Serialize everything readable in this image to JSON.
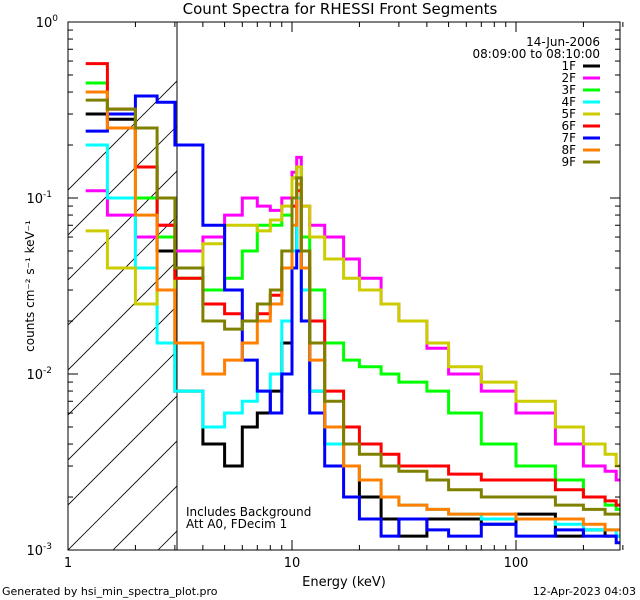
{
  "chart_data": {
    "type": "line",
    "title": "Count Spectra for RHESSI Front Segments",
    "xlabel": "Energy (keV)",
    "ylabel": "counts cm⁻² s⁻¹ keV⁻¹",
    "xscale": "log",
    "yscale": "log",
    "xlim": [
      1,
      300
    ],
    "ylim": [
      0.001,
      1
    ],
    "x_tick_labels": [
      "1",
      "10",
      "100"
    ],
    "y_tick_labels": [
      {
        "base": "10",
        "exp": "0"
      },
      {
        "base": "10",
        "exp": "-1"
      },
      {
        "base": "10",
        "exp": "-2"
      },
      {
        "base": "10",
        "exp": "-3"
      }
    ],
    "date": "14-Jun-2006",
    "time_range": "08:09:00 to 08:10:00",
    "annotations": [
      "Includes Background",
      "Att A0, FDecim 1"
    ],
    "footer_left": "Generated by hsi_min_spectra_plot.pro",
    "footer_right": "12-Apr-2023 04:03",
    "shaded_region": [
      1,
      3
    ],
    "legend_position": "top-right",
    "series": [
      {
        "name": "1F",
        "color": "#000000",
        "x": [
          1.2,
          1.5,
          2.0,
          2.5,
          3.0,
          4.0,
          5.0,
          6.0,
          7.0,
          8.0,
          9.0,
          10.0,
          10.5,
          11.0,
          12.0,
          14.0,
          17.0,
          20.0,
          25.0,
          30.0,
          40.0,
          50.0,
          70.0,
          100.0,
          150.0,
          200.0,
          250.0,
          280.0
        ],
        "y": [
          0.3,
          0.28,
          0.15,
          0.05,
          0.008,
          0.004,
          0.003,
          0.005,
          0.006,
          0.008,
          0.015,
          0.05,
          0.1,
          0.04,
          0.008,
          0.004,
          0.003,
          0.002,
          0.0015,
          0.0012,
          0.0015,
          0.0015,
          0.0014,
          0.0016,
          0.0012,
          0.0013,
          0.0012,
          0.0012
        ]
      },
      {
        "name": "2F",
        "color": "#ff00ff",
        "x": [
          1.2,
          1.5,
          2.0,
          2.5,
          3.0,
          4.0,
          5.0,
          6.0,
          7.0,
          8.0,
          9.0,
          10.0,
          10.5,
          11.0,
          12.0,
          14.0,
          17.0,
          20.0,
          25.0,
          30.0,
          40.0,
          50.0,
          70.0,
          100.0,
          150.0,
          200.0,
          250.0,
          280.0
        ],
        "y": [
          0.11,
          0.08,
          0.06,
          0.07,
          0.05,
          0.06,
          0.08,
          0.1,
          0.09,
          0.085,
          0.1,
          0.14,
          0.17,
          0.09,
          0.07,
          0.06,
          0.045,
          0.035,
          0.025,
          0.02,
          0.014,
          0.01,
          0.008,
          0.006,
          0.004,
          0.003,
          0.0028,
          0.0025
        ]
      },
      {
        "name": "3F",
        "color": "#00ff00",
        "x": [
          1.2,
          1.5,
          2.0,
          2.5,
          3.0,
          4.0,
          5.0,
          6.0,
          7.0,
          8.0,
          9.0,
          10.0,
          10.5,
          11.0,
          12.0,
          14.0,
          17.0,
          20.0,
          25.0,
          30.0,
          40.0,
          50.0,
          70.0,
          100.0,
          150.0,
          200.0,
          250.0,
          280.0
        ],
        "y": [
          0.45,
          0.3,
          0.1,
          0.06,
          0.035,
          0.03,
          0.035,
          0.05,
          0.07,
          0.07,
          0.08,
          0.13,
          0.15,
          0.06,
          0.03,
          0.015,
          0.012,
          0.011,
          0.01,
          0.009,
          0.008,
          0.006,
          0.004,
          0.003,
          0.0025,
          0.002,
          0.0018,
          0.0017
        ]
      },
      {
        "name": "4F",
        "color": "#00ffff",
        "x": [
          1.2,
          1.5,
          2.0,
          2.5,
          3.0,
          4.0,
          5.0,
          6.0,
          7.0,
          8.0,
          9.0,
          10.0,
          10.5,
          11.0,
          12.0,
          14.0,
          17.0,
          20.0,
          25.0,
          30.0,
          40.0,
          50.0,
          70.0,
          100.0,
          150.0,
          200.0,
          250.0,
          280.0
        ],
        "y": [
          0.2,
          0.1,
          0.04,
          0.015,
          0.008,
          0.005,
          0.006,
          0.007,
          0.008,
          0.01,
          0.02,
          0.05,
          0.1,
          0.03,
          0.008,
          0.004,
          0.003,
          0.0025,
          0.002,
          0.0018,
          0.0017,
          0.0016,
          0.0015,
          0.0015,
          0.0014,
          0.0013,
          0.0013,
          0.0012
        ]
      },
      {
        "name": "5F",
        "color": "#cccc00",
        "x": [
          1.2,
          1.5,
          2.0,
          2.5,
          3.0,
          4.0,
          5.0,
          6.0,
          7.0,
          8.0,
          9.0,
          10.0,
          10.5,
          11.0,
          12.0,
          14.0,
          17.0,
          20.0,
          25.0,
          30.0,
          40.0,
          50.0,
          70.0,
          100.0,
          150.0,
          200.0,
          250.0,
          280.0
        ],
        "y": [
          0.065,
          0.04,
          0.025,
          0.03,
          0.04,
          0.055,
          0.07,
          0.07,
          0.065,
          0.075,
          0.09,
          0.13,
          0.15,
          0.09,
          0.06,
          0.045,
          0.035,
          0.03,
          0.025,
          0.02,
          0.015,
          0.011,
          0.009,
          0.007,
          0.005,
          0.004,
          0.0035,
          0.003
        ]
      },
      {
        "name": "6F",
        "color": "#ff0000",
        "x": [
          1.2,
          1.5,
          2.0,
          2.5,
          3.0,
          4.0,
          5.0,
          6.0,
          7.0,
          8.0,
          9.0,
          10.0,
          10.5,
          11.0,
          12.0,
          14.0,
          17.0,
          20.0,
          25.0,
          30.0,
          40.0,
          50.0,
          70.0,
          100.0,
          150.0,
          200.0,
          250.0,
          280.0
        ],
        "y": [
          0.58,
          0.32,
          0.15,
          0.07,
          0.035,
          0.025,
          0.022,
          0.02,
          0.022,
          0.028,
          0.04,
          0.09,
          0.11,
          0.05,
          0.02,
          0.008,
          0.005,
          0.004,
          0.0035,
          0.003,
          0.003,
          0.0027,
          0.0025,
          0.0025,
          0.0022,
          0.002,
          0.0019,
          0.0018
        ]
      },
      {
        "name": "7F",
        "color": "#0000ff",
        "x": [
          1.2,
          1.5,
          2.0,
          2.5,
          3.0,
          4.0,
          5.0,
          6.0,
          7.0,
          8.0,
          9.0,
          10.0,
          10.5,
          11.0,
          12.0,
          14.0,
          17.0,
          20.0,
          25.0,
          30.0,
          40.0,
          50.0,
          70.0,
          100.0,
          150.0,
          200.0,
          250.0,
          280.0
        ],
        "y": [
          0.24,
          0.3,
          0.38,
          0.35,
          0.2,
          0.07,
          0.03,
          0.012,
          0.008,
          0.006,
          0.01,
          0.04,
          0.05,
          0.02,
          0.006,
          0.003,
          0.002,
          0.0015,
          0.0012,
          0.0015,
          0.0013,
          0.0012,
          0.0014,
          0.0012,
          0.0013,
          0.0012,
          0.0012,
          0.0011
        ]
      },
      {
        "name": "8F",
        "color": "#ff8000",
        "x": [
          1.2,
          1.5,
          2.0,
          2.5,
          3.0,
          4.0,
          5.0,
          6.0,
          7.0,
          8.0,
          9.0,
          10.0,
          10.5,
          11.0,
          12.0,
          14.0,
          17.0,
          20.0,
          25.0,
          30.0,
          40.0,
          50.0,
          70.0,
          100.0,
          150.0,
          200.0,
          250.0,
          280.0
        ],
        "y": [
          0.4,
          0.25,
          0.08,
          0.03,
          0.015,
          0.01,
          0.012,
          0.015,
          0.02,
          0.025,
          0.04,
          0.07,
          0.12,
          0.04,
          0.012,
          0.005,
          0.003,
          0.0025,
          0.002,
          0.0018,
          0.0017,
          0.0016,
          0.0016,
          0.0015,
          0.0015,
          0.0014,
          0.0013,
          0.0013
        ]
      },
      {
        "name": "9F",
        "color": "#808000",
        "x": [
          1.2,
          1.5,
          2.0,
          2.5,
          3.0,
          4.0,
          5.0,
          6.0,
          7.0,
          8.0,
          9.0,
          10.0,
          10.5,
          11.0,
          12.0,
          14.0,
          17.0,
          20.0,
          25.0,
          30.0,
          40.0,
          50.0,
          70.0,
          100.0,
          150.0,
          200.0,
          250.0,
          280.0
        ],
        "y": [
          0.36,
          0.32,
          0.25,
          0.1,
          0.04,
          0.02,
          0.018,
          0.02,
          0.025,
          0.03,
          0.05,
          0.1,
          0.13,
          0.05,
          0.015,
          0.007,
          0.004,
          0.0035,
          0.003,
          0.0028,
          0.0025,
          0.0022,
          0.002,
          0.002,
          0.0018,
          0.0017,
          0.0016,
          0.0016
        ]
      }
    ]
  }
}
